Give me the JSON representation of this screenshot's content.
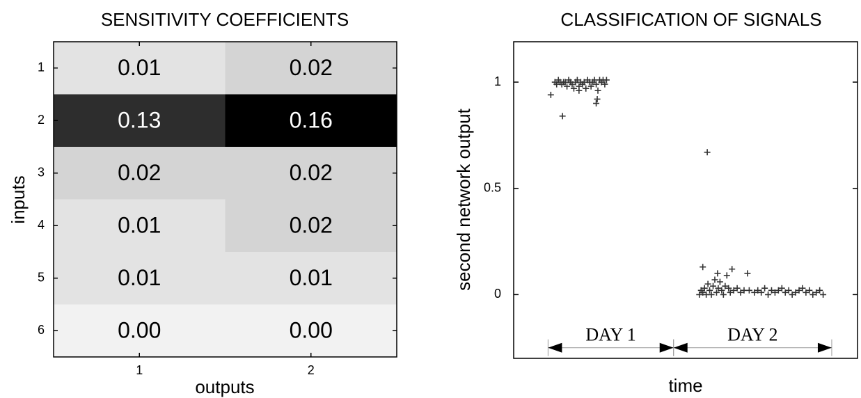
{
  "chart_data": [
    {
      "type": "heatmap",
      "title": "SENSITIVITY COEFFICIENTS",
      "x_label": "outputs",
      "y_label": "inputs",
      "x_categories": [
        "1",
        "2"
      ],
      "y_categories": [
        "1",
        "2",
        "3",
        "4",
        "5",
        "6"
      ],
      "values": [
        [
          0.01,
          0.02
        ],
        [
          0.13,
          0.16
        ],
        [
          0.02,
          0.02
        ],
        [
          0.01,
          0.02
        ],
        [
          0.01,
          0.01
        ],
        [
          0.0,
          0.0
        ]
      ],
      "value_labels": [
        [
          "0.01",
          "0.02"
        ],
        [
          "0.13",
          "0.16"
        ],
        [
          "0.02",
          "0.02"
        ],
        [
          "0.01",
          "0.02"
        ],
        [
          "0.01",
          "0.01"
        ],
        [
          "0.00",
          "0.00"
        ]
      ],
      "colormap": "gray_r"
    },
    {
      "type": "scatter",
      "title": "CLASSIFICATION OF SIGNALS",
      "x_label": "time",
      "y_label": "second network output",
      "xlim": [
        0,
        100
      ],
      "ylim": [
        -0.3,
        1.19
      ],
      "yticks": [
        0,
        0.5,
        1
      ],
      "color": "#333333",
      "marker": "+",
      "x": [
        12,
        12.5,
        13,
        13.5,
        14,
        14.5,
        15,
        15.5,
        16,
        16.5,
        17,
        17.5,
        18,
        18.5,
        19,
        19.5,
        20,
        20.5,
        21,
        21.5,
        22,
        22.5,
        23,
        23.5,
        24,
        24.5,
        25,
        25.5,
        26,
        26.5,
        27,
        10.8,
        14.2,
        24,
        24.3,
        19,
        21,
        54,
        54.5,
        55,
        55.5,
        56,
        56.5,
        57,
        57.5,
        58,
        58.5,
        59,
        59.5,
        60,
        60.5,
        61,
        61.5,
        62,
        62.5,
        63,
        63.5,
        64,
        65,
        66,
        67,
        68,
        68.5,
        70,
        71,
        72,
        73,
        74,
        75,
        76,
        77,
        78,
        79,
        80,
        81,
        82,
        83,
        84,
        85,
        86,
        87,
        88,
        89,
        90,
        55,
        56.3,
        59.3
      ],
      "y": [
        1.0,
        0.99,
        1.01,
        1.0,
        0.99,
        1.0,
        1.0,
        0.98,
        1.01,
        1.0,
        0.99,
        0.97,
        1.0,
        1.01,
        0.98,
        1.0,
        0.99,
        1.0,
        0.97,
        1.01,
        1.0,
        0.98,
        1.0,
        1.01,
        0.99,
        0.96,
        1.01,
        1.0,
        1.01,
        0.99,
        1.01,
        0.94,
        0.84,
        0.9,
        0.92,
        0.96,
        0.97,
        0.0,
        0.02,
        0.01,
        0.03,
        0.0,
        0.05,
        0.02,
        0.0,
        0.04,
        0.07,
        0.01,
        0.03,
        0.06,
        0.02,
        0.0,
        0.04,
        0.09,
        0.03,
        0.01,
        0.12,
        0.02,
        0.03,
        0.01,
        0.02,
        0.1,
        0.02,
        0.01,
        0.02,
        0.01,
        0.03,
        0.0,
        0.02,
        0.01,
        0.02,
        0.03,
        0.01,
        0.02,
        0.0,
        0.01,
        0.02,
        0.03,
        0.01,
        0.02,
        0.0,
        0.01,
        0.02,
        0.0,
        0.13,
        0.67,
        0.1
      ],
      "annotations": [
        {
          "text": "DAY 1",
          "x": [
            10,
            46.5
          ],
          "y": -0.25
        },
        {
          "text": "DAY 2",
          "x": [
            46.5,
            92.5
          ],
          "y": -0.25
        }
      ]
    }
  ]
}
